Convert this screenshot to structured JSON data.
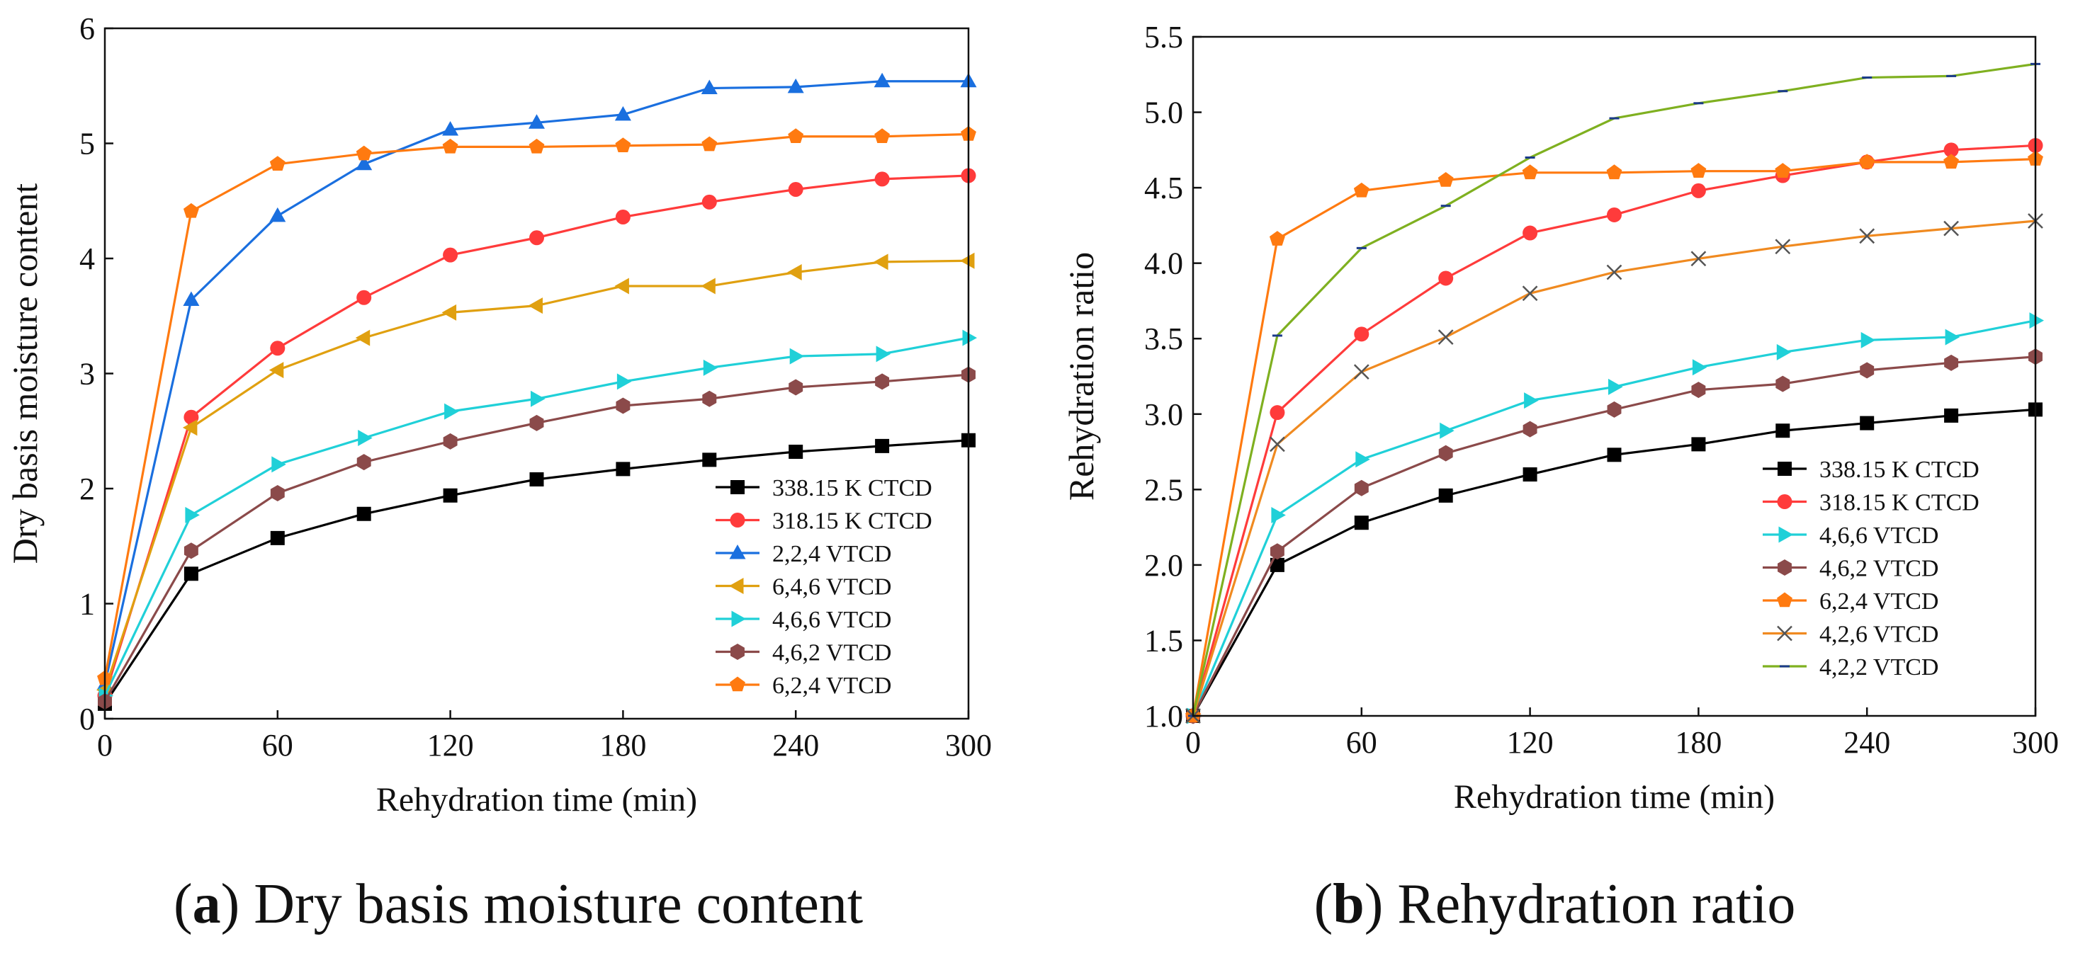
{
  "captions": [
    {
      "letter": "a",
      "text": " Dry basis moisture content"
    },
    {
      "letter": "b",
      "text": " Rehydration ratio"
    }
  ],
  "chart_data": [
    {
      "type": "line",
      "xlabel": "Rehydration time (min)",
      "ylabel": "Dry basis moisture content",
      "xlim": [
        0,
        300
      ],
      "ylim": [
        0,
        6
      ],
      "xticks": [
        0,
        60,
        120,
        180,
        240,
        300
      ],
      "yticks": [
        0,
        1,
        2,
        3,
        4,
        5,
        6
      ],
      "grid": false,
      "legend_position": "bottom-right",
      "x": [
        0,
        30,
        60,
        90,
        120,
        150,
        180,
        210,
        240,
        270,
        300
      ],
      "series": [
        {
          "name": "338.15 K CTCD",
          "color": "#000000",
          "marker": "square",
          "values": [
            0.13,
            1.26,
            1.57,
            1.78,
            1.94,
            2.08,
            2.17,
            2.25,
            2.32,
            2.37,
            2.42
          ]
        },
        {
          "name": "318.15 K CTCD",
          "color": "#ff3b3b",
          "marker": "circle",
          "values": [
            0.2,
            2.62,
            3.22,
            3.66,
            4.03,
            4.18,
            4.36,
            4.49,
            4.6,
            4.69,
            4.72
          ]
        },
        {
          "name": "2,2,4 VTCD",
          "color": "#1a6fdf",
          "marker": "triangle-up",
          "values": [
            0.3,
            3.64,
            4.37,
            4.82,
            5.12,
            5.18,
            5.25,
            5.48,
            5.49,
            5.54,
            5.54
          ]
        },
        {
          "name": "6,4,6 VTCD",
          "color": "#e0a010",
          "marker": "triangle-left",
          "values": [
            0.25,
            2.53,
            3.03,
            3.31,
            3.53,
            3.59,
            3.76,
            3.76,
            3.88,
            3.97,
            3.98
          ]
        },
        {
          "name": "4,6,6 VTCD",
          "color": "#20d0d8",
          "marker": "triangle-right",
          "values": [
            0.2,
            1.77,
            2.21,
            2.44,
            2.67,
            2.78,
            2.93,
            3.05,
            3.15,
            3.17,
            3.31
          ]
        },
        {
          "name": "4,6,2 VTCD",
          "color": "#8b4a4a",
          "marker": "hexagon",
          "values": [
            0.15,
            1.46,
            1.96,
            2.23,
            2.41,
            2.57,
            2.72,
            2.78,
            2.88,
            2.93,
            2.99
          ]
        },
        {
          "name": "6,2,4 VTCD",
          "color": "#ff7a10",
          "marker": "pentagon",
          "values": [
            0.35,
            4.41,
            4.82,
            4.91,
            4.97,
            4.97,
            4.98,
            4.99,
            5.06,
            5.06,
            5.08
          ]
        }
      ]
    },
    {
      "type": "line",
      "xlabel": "Rehydration time (min)",
      "ylabel": "Rehydration ratio",
      "xlim": [
        0,
        300
      ],
      "ylim": [
        1.0,
        5.5
      ],
      "xticks": [
        0,
        60,
        120,
        180,
        240,
        300
      ],
      "yticks": [
        1.0,
        1.5,
        2.0,
        2.5,
        3.0,
        3.5,
        4.0,
        4.5,
        5.0,
        5.5
      ],
      "grid": false,
      "legend_position": "bottom-right",
      "x": [
        0,
        30,
        60,
        90,
        120,
        150,
        180,
        210,
        240,
        270,
        300
      ],
      "series": [
        {
          "name": "338.15 K CTCD",
          "color": "#000000",
          "marker": "square",
          "values": [
            1.0,
            2.0,
            2.28,
            2.46,
            2.6,
            2.73,
            2.8,
            2.89,
            2.94,
            2.99,
            3.03
          ]
        },
        {
          "name": "318.15 K CTCD",
          "color": "#ff3b3b",
          "marker": "circle",
          "values": [
            1.0,
            3.01,
            3.53,
            3.9,
            4.2,
            4.32,
            4.48,
            4.58,
            4.67,
            4.75,
            4.78
          ]
        },
        {
          "name": "4,6,6 VTCD",
          "color": "#20d0d8",
          "marker": "triangle-right",
          "values": [
            1.0,
            2.33,
            2.7,
            2.89,
            3.09,
            3.18,
            3.31,
            3.41,
            3.49,
            3.51,
            3.62
          ]
        },
        {
          "name": "4,6,2 VTCD",
          "color": "#8b4a4a",
          "marker": "hexagon",
          "values": [
            1.0,
            2.09,
            2.51,
            2.74,
            2.9,
            3.03,
            3.16,
            3.2,
            3.29,
            3.34,
            3.38
          ]
        },
        {
          "name": "6,2,4 VTCD",
          "color": "#ff7a10",
          "marker": "pentagon",
          "values": [
            1.0,
            4.16,
            4.48,
            4.55,
            4.6,
            4.6,
            4.61,
            4.61,
            4.67,
            4.67,
            4.69
          ]
        },
        {
          "name": "4,2,6 VTCD",
          "color": "#f08a20",
          "marker": "x",
          "values": [
            1.0,
            2.8,
            3.28,
            3.51,
            3.8,
            3.94,
            4.03,
            4.11,
            4.18,
            4.23,
            4.28
          ]
        },
        {
          "name": "4,2,2 VTCD",
          "color": "#7fb020",
          "marker": "dash",
          "values": [
            1.0,
            3.52,
            4.1,
            4.38,
            4.7,
            4.96,
            5.06,
            5.14,
            5.23,
            5.24,
            5.32
          ]
        }
      ]
    }
  ]
}
